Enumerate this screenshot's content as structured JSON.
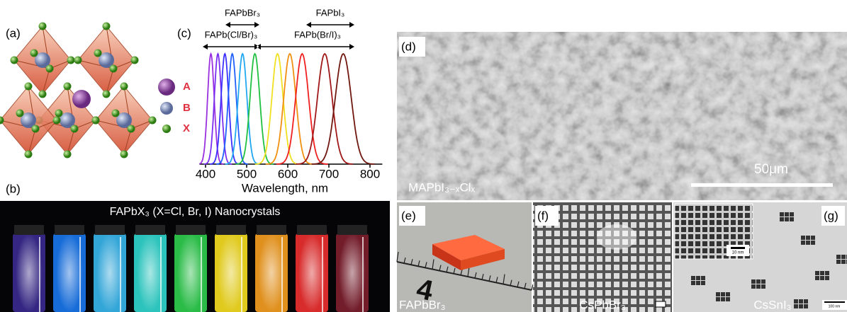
{
  "panels": {
    "a": {
      "label": "(a)",
      "legend": [
        "A",
        "B",
        "X"
      ]
    },
    "b": {
      "label": "(b)",
      "caption": "FAPbX₃ (X=Cl, Br, I) Nanocrystals"
    },
    "d": {
      "label": "(d)",
      "caption": "MAPbI₃₋ₓClₓ",
      "scale": "50μm"
    },
    "e": {
      "label": "(e)",
      "caption": "FAPbBr₃"
    },
    "f": {
      "label": "(f)",
      "caption": "CsPbBr₃"
    },
    "g": {
      "label": "(g)",
      "caption": "CsSnI₃",
      "inset_scale": "10 nm",
      "scale": "100 nm"
    }
  },
  "chart_data": {
    "type": "line",
    "label": "(c)",
    "xlabel": "Wavelength, nm",
    "xlim": [
      385,
      830
    ],
    "xticks": [
      400,
      500,
      600,
      700,
      800
    ],
    "peaks": [
      413,
      430,
      447,
      465,
      490,
      520,
      575,
      605,
      635,
      690,
      735
    ],
    "colors": [
      "#9a30e0",
      "#7a2ff0",
      "#3c30ff",
      "#2060ff",
      "#20a8f0",
      "#20c040",
      "#f0e020",
      "#f09010",
      "#f02020",
      "#a01818",
      "#701810"
    ],
    "annotations": [
      "FAPbBr₃",
      "FAPbI₃",
      "FAPb(Cl/Br)₃",
      "FAPb(Br/I)₃"
    ]
  }
}
